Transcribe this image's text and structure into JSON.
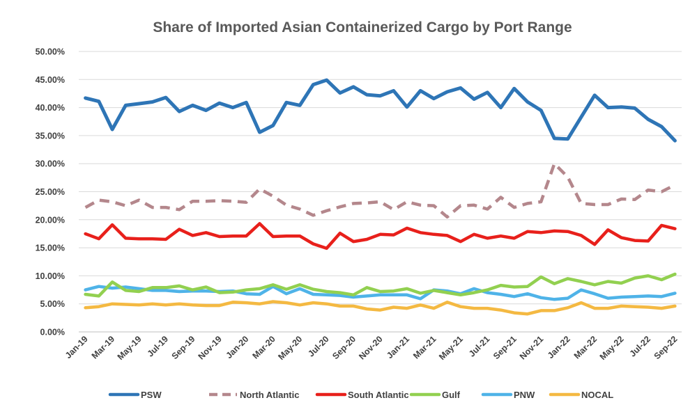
{
  "chart_data": {
    "type": "line",
    "title": "Share of Imported Asian Containerized Cargo by Port Range",
    "xlabel": "",
    "ylabel": "",
    "ylim": [
      0,
      0.5
    ],
    "yticks": [
      "0.00%",
      "5.00%",
      "10.00%",
      "15.00%",
      "20.00%",
      "25.00%",
      "30.00%",
      "35.00%",
      "40.00%",
      "45.00%",
      "50.00%"
    ],
    "x_tick_labels": [
      "Jan-19",
      "Mar-19",
      "May-19",
      "Jul-19",
      "Sep-19",
      "Nov-19",
      "Jan-20",
      "Mar-20",
      "May-20",
      "Jul-20",
      "Sep-20",
      "Nov-20",
      "Jan-21",
      "Mar-21",
      "May-21",
      "Jul-21",
      "Sep-21",
      "Nov-21",
      "Jan-22",
      "Mar-22",
      "May-22",
      "Jul-22",
      "Sep-22"
    ],
    "categories": [
      "Jan-19",
      "Feb-19",
      "Mar-19",
      "Apr-19",
      "May-19",
      "Jun-19",
      "Jul-19",
      "Aug-19",
      "Sep-19",
      "Oct-19",
      "Nov-19",
      "Dec-19",
      "Jan-20",
      "Feb-20",
      "Mar-20",
      "Apr-20",
      "May-20",
      "Jun-20",
      "Jul-20",
      "Aug-20",
      "Sep-20",
      "Oct-20",
      "Nov-20",
      "Dec-20",
      "Jan-21",
      "Feb-21",
      "Mar-21",
      "Apr-21",
      "May-21",
      "Jun-21",
      "Jul-21",
      "Aug-21",
      "Sep-21",
      "Oct-21",
      "Nov-21",
      "Dec-21",
      "Jan-22",
      "Feb-22",
      "Mar-22",
      "Apr-22",
      "May-22",
      "Jun-22",
      "Jul-22",
      "Aug-22",
      "Sep-22"
    ],
    "grid": true,
    "legend_position": "bottom",
    "series": [
      {
        "name": "PSW",
        "color": "#2e75b6",
        "style": "solid",
        "values": [
          0.417,
          0.411,
          0.361,
          0.404,
          0.407,
          0.41,
          0.418,
          0.393,
          0.404,
          0.395,
          0.408,
          0.4,
          0.409,
          0.356,
          0.368,
          0.409,
          0.404,
          0.441,
          0.449,
          0.426,
          0.437,
          0.423,
          0.421,
          0.43,
          0.401,
          0.43,
          0.416,
          0.428,
          0.435,
          0.415,
          0.427,
          0.4,
          0.434,
          0.41,
          0.395,
          0.345,
          0.344,
          0.383,
          0.422,
          0.4,
          0.401,
          0.399,
          0.379,
          0.366,
          0.341
        ]
      },
      {
        "name": "North Atlantic",
        "color": "#b4878c",
        "style": "dashed",
        "values": [
          0.222,
          0.235,
          0.232,
          0.225,
          0.235,
          0.222,
          0.222,
          0.218,
          0.233,
          0.233,
          0.234,
          0.233,
          0.231,
          0.255,
          0.242,
          0.226,
          0.219,
          0.208,
          0.216,
          0.223,
          0.229,
          0.23,
          0.232,
          0.218,
          0.232,
          0.226,
          0.225,
          0.205,
          0.225,
          0.226,
          0.219,
          0.24,
          0.222,
          0.229,
          0.232,
          0.3,
          0.276,
          0.229,
          0.227,
          0.227,
          0.237,
          0.236,
          0.253,
          0.25,
          0.262
        ]
      },
      {
        "name": "South Atlantic",
        "color": "#e8201b",
        "style": "solid",
        "values": [
          0.175,
          0.166,
          0.191,
          0.167,
          0.166,
          0.166,
          0.165,
          0.183,
          0.172,
          0.177,
          0.17,
          0.171,
          0.171,
          0.193,
          0.17,
          0.171,
          0.171,
          0.157,
          0.149,
          0.176,
          0.161,
          0.165,
          0.174,
          0.173,
          0.185,
          0.177,
          0.174,
          0.172,
          0.161,
          0.174,
          0.167,
          0.171,
          0.167,
          0.179,
          0.177,
          0.18,
          0.179,
          0.172,
          0.156,
          0.182,
          0.168,
          0.163,
          0.162,
          0.19,
          0.184
        ]
      },
      {
        "name": "Gulf",
        "color": "#92d050",
        "style": "solid",
        "values": [
          0.067,
          0.064,
          0.089,
          0.074,
          0.072,
          0.079,
          0.079,
          0.082,
          0.075,
          0.08,
          0.07,
          0.071,
          0.075,
          0.077,
          0.084,
          0.076,
          0.084,
          0.076,
          0.072,
          0.07,
          0.066,
          0.079,
          0.072,
          0.073,
          0.077,
          0.069,
          0.074,
          0.07,
          0.066,
          0.07,
          0.075,
          0.083,
          0.08,
          0.081,
          0.098,
          0.086,
          0.095,
          0.09,
          0.084,
          0.09,
          0.087,
          0.096,
          0.1,
          0.093,
          0.103
        ]
      },
      {
        "name": "PNW",
        "color": "#4fb3e8",
        "style": "solid",
        "values": [
          0.075,
          0.081,
          0.078,
          0.08,
          0.077,
          0.074,
          0.074,
          0.072,
          0.073,
          0.073,
          0.072,
          0.073,
          0.068,
          0.067,
          0.081,
          0.068,
          0.077,
          0.067,
          0.066,
          0.065,
          0.062,
          0.064,
          0.066,
          0.066,
          0.066,
          0.059,
          0.075,
          0.073,
          0.068,
          0.077,
          0.07,
          0.067,
          0.063,
          0.068,
          0.061,
          0.058,
          0.06,
          0.075,
          0.068,
          0.06,
          0.062,
          0.063,
          0.064,
          0.063,
          0.069
        ]
      },
      {
        "name": "NOCAL",
        "color": "#f4b942",
        "style": "solid",
        "values": [
          0.043,
          0.045,
          0.05,
          0.049,
          0.048,
          0.05,
          0.048,
          0.05,
          0.048,
          0.047,
          0.047,
          0.053,
          0.052,
          0.05,
          0.054,
          0.052,
          0.048,
          0.052,
          0.05,
          0.046,
          0.046,
          0.041,
          0.039,
          0.044,
          0.042,
          0.048,
          0.042,
          0.053,
          0.045,
          0.042,
          0.042,
          0.039,
          0.034,
          0.032,
          0.038,
          0.038,
          0.043,
          0.052,
          0.042,
          0.042,
          0.046,
          0.045,
          0.044,
          0.042,
          0.046
        ]
      }
    ]
  }
}
